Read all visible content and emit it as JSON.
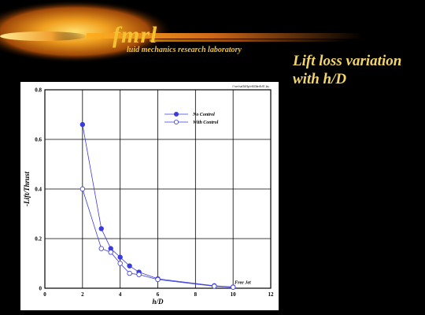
{
  "logo": {
    "name": "fmrl",
    "subtitle": "luid mechanics research laboratory"
  },
  "slide": {
    "title": "Lift loss variation with h/D"
  },
  "colors": {
    "background": "#000000",
    "logo_gold": "#f2c230",
    "title": "#f3d66a",
    "series": "#3a3adf"
  },
  "chart_data": {
    "type": "line",
    "file_label": "f:\\sec\\sat\\lift\\lp\\eh\\lftbrd\\c01.lay",
    "xlabel": "h/D",
    "ylabel": "-Lift/Thrust",
    "xlim": [
      0,
      12
    ],
    "ylim": [
      0,
      0.8
    ],
    "x_ticks": [
      "0",
      "2",
      "4",
      "6",
      "8",
      "10",
      "12"
    ],
    "y_ticks": [
      "0",
      "0.2",
      "0.4",
      "0.6",
      "0.8"
    ],
    "grid": true,
    "legend_position": "top-right",
    "series": [
      {
        "name": "No Control",
        "marker": "filled-circle",
        "x": [
          2,
          3,
          3.5,
          4,
          4.5,
          5,
          6,
          9,
          10
        ],
        "y": [
          0.66,
          0.24,
          0.16,
          0.125,
          0.09,
          0.065,
          0.038,
          0.01,
          0.005
        ]
      },
      {
        "name": "With Control",
        "marker": "open-circle",
        "x": [
          2,
          3,
          3.5,
          4,
          4.5,
          5,
          6,
          9,
          10
        ],
        "y": [
          0.4,
          0.16,
          0.145,
          0.1,
          0.06,
          0.055,
          0.035,
          0.008,
          0.004
        ]
      }
    ],
    "annotations": [
      {
        "text": "Free Jet",
        "x": 10,
        "y": 0.005
      }
    ]
  }
}
